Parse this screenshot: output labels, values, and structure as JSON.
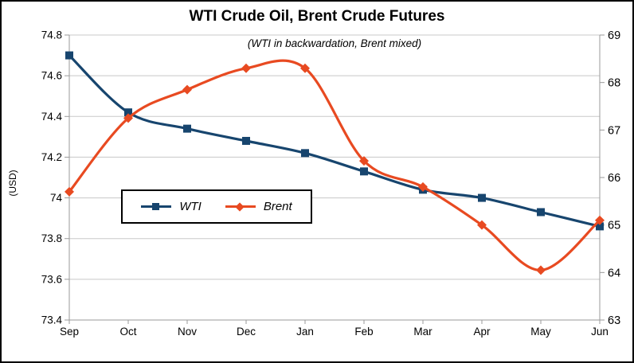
{
  "chart_data": {
    "type": "line",
    "title": "WTI Crude Oil, Brent Crude Futures",
    "subtitle": "(WTI in backwardation, Brent mixed)",
    "ylabel": "(USD)",
    "categories": [
      "Sep",
      "Oct",
      "Nov",
      "Dec",
      "Jan",
      "Feb",
      "Mar",
      "Apr",
      "May",
      "Jun"
    ],
    "series": [
      {
        "name": "WTI",
        "axis": "left",
        "color": "#17456e",
        "marker": "square",
        "values": [
          74.7,
          74.42,
          74.34,
          74.28,
          74.22,
          74.13,
          74.04,
          74.0,
          73.93,
          73.86
        ]
      },
      {
        "name": "Brent",
        "axis": "right",
        "color": "#e84a21",
        "marker": "diamond",
        "values": [
          65.7,
          67.25,
          67.85,
          68.3,
          68.3,
          66.35,
          65.8,
          65.0,
          64.05,
          65.1
        ]
      }
    ],
    "left_axis": {
      "min": 73.4,
      "max": 74.8,
      "tick_values": [
        74.8,
        74.6,
        74.4,
        74.2,
        74.0,
        73.8,
        73.6,
        73.4
      ],
      "tick_labels": [
        "74.8",
        "74.6",
        "74.4",
        "74.2",
        "74",
        "73.8",
        "73.6",
        "73.4"
      ]
    },
    "right_axis": {
      "min": 63,
      "max": 69,
      "tick_values": [
        69,
        68,
        67,
        66,
        65,
        64,
        63
      ],
      "tick_labels": [
        "69",
        "68",
        "67",
        "66",
        "65",
        "64",
        "63"
      ]
    },
    "grid": true,
    "smooth": true,
    "legend_position": "inside-left",
    "grid_color": "#c8c8c8",
    "axis_color": "#9a9a9a"
  }
}
